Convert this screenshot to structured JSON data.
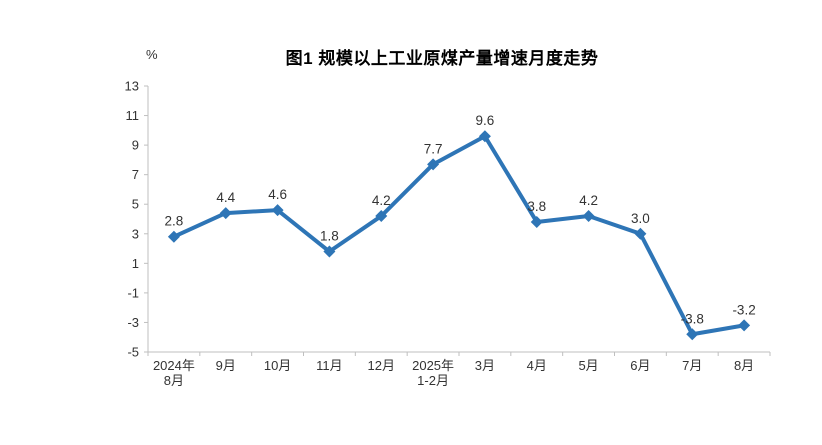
{
  "page": {
    "background": "#ffffff"
  },
  "chart_data": {
    "type": "line",
    "title": "图1  规模以上工业原煤产量增速月度走势",
    "unit_label": "%",
    "xlabel": "",
    "ylabel": "%",
    "categories": [
      [
        "2024年",
        "8月"
      ],
      [
        "9月"
      ],
      [
        "10月"
      ],
      [
        "11月"
      ],
      [
        "12月"
      ],
      [
        "2025年",
        "1-2月"
      ],
      [
        "3月"
      ],
      [
        "4月"
      ],
      [
        "5月"
      ],
      [
        "6月"
      ],
      [
        "7月"
      ],
      [
        "8月"
      ]
    ],
    "values": [
      2.8,
      4.4,
      4.6,
      1.8,
      4.2,
      7.7,
      9.6,
      3.8,
      4.2,
      3.0,
      -3.8,
      -3.2
    ],
    "data_labels": [
      "2.8",
      "4.4",
      "4.6",
      "1.8",
      "4.2",
      "7.7",
      "9.6",
      "3.8",
      "4.2",
      "3.0",
      "-3.8",
      "-3.2"
    ],
    "ylim": [
      -5,
      13
    ],
    "yticks": [
      13,
      11,
      9,
      7,
      5,
      3,
      1,
      -1,
      -3,
      -5
    ],
    "grid": false,
    "legend": "none",
    "marker": "diamond",
    "colors": {
      "line": "#2E75B6",
      "marker": "#2E75B6",
      "axis": "#BFBFBF",
      "tick_text": "#333333",
      "data_label_text": "#333333",
      "title_text": "#000000"
    }
  }
}
